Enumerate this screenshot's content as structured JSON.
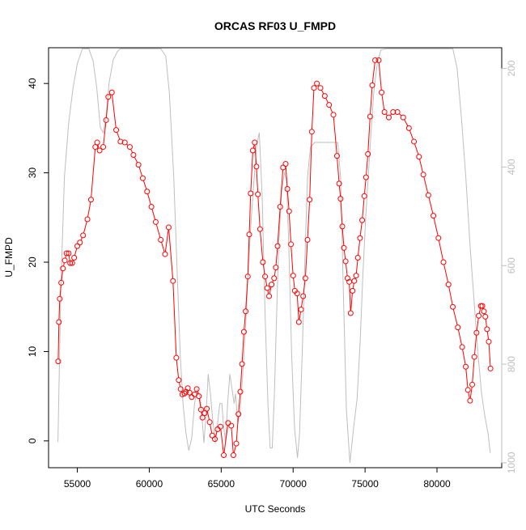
{
  "chart_data": {
    "type": "line",
    "title": "ORCAS RF03 U_FMPD",
    "xlabel": "UTC Seconds",
    "ylabel": "U_FMPD",
    "xlim": [
      53000,
      84500
    ],
    "ylim": [
      -3,
      44
    ],
    "x_ticks": [
      55000,
      60000,
      65000,
      70000,
      75000,
      80000
    ],
    "y_ticks": [
      0,
      10,
      20,
      30,
      40
    ],
    "y2lim": [
      1010,
      158
    ],
    "y2_ticks": [
      200,
      400,
      600,
      800,
      1000
    ],
    "grid": false,
    "series": [
      {
        "role": "primary",
        "color": "#ff0000",
        "marker": "open-circle",
        "points": [
          [
            53670,
            8.9
          ],
          [
            53720,
            13.3
          ],
          [
            53780,
            15.9
          ],
          [
            53880,
            17.7
          ],
          [
            54000,
            19.3
          ],
          [
            54130,
            20.2
          ],
          [
            54250,
            21.0
          ],
          [
            54400,
            21.0
          ],
          [
            54500,
            19.9
          ],
          [
            54640,
            19.9
          ],
          [
            54780,
            20.5
          ],
          [
            55000,
            21.8
          ],
          [
            55180,
            22.2
          ],
          [
            55400,
            23.0
          ],
          [
            55700,
            24.8
          ],
          [
            55950,
            27.0
          ],
          [
            56250,
            32.9
          ],
          [
            56380,
            33.4
          ],
          [
            56550,
            32.5
          ],
          [
            56800,
            32.9
          ],
          [
            57000,
            35.9
          ],
          [
            57150,
            38.5
          ],
          [
            57400,
            39.0
          ],
          [
            57700,
            34.8
          ],
          [
            58000,
            33.5
          ],
          [
            58300,
            33.4
          ],
          [
            58650,
            32.9
          ],
          [
            58900,
            32.0
          ],
          [
            59250,
            30.9
          ],
          [
            59550,
            29.4
          ],
          [
            59850,
            27.9
          ],
          [
            60150,
            26.2
          ],
          [
            60450,
            24.5
          ],
          [
            60800,
            22.5
          ],
          [
            61100,
            20.9
          ],
          [
            61350,
            23.9
          ],
          [
            61650,
            17.9
          ],
          [
            61880,
            9.3
          ],
          [
            62050,
            6.8
          ],
          [
            62180,
            5.8
          ],
          [
            62300,
            5.2
          ],
          [
            62450,
            5.3
          ],
          [
            62550,
            5.5
          ],
          [
            62680,
            5.9
          ],
          [
            62800,
            5.4
          ],
          [
            62950,
            4.9
          ],
          [
            63150,
            5.2
          ],
          [
            63300,
            5.8
          ],
          [
            63450,
            5.0
          ],
          [
            63600,
            3.5
          ],
          [
            63700,
            2.6
          ],
          [
            63850,
            3.1
          ],
          [
            64000,
            3.6
          ],
          [
            64200,
            2.1
          ],
          [
            64380,
            0.6
          ],
          [
            64560,
            0.2
          ],
          [
            64750,
            1.3
          ],
          [
            64950,
            1.6
          ],
          [
            65180,
            -1.6
          ],
          [
            65480,
            2.0
          ],
          [
            65700,
            1.7
          ],
          [
            65850,
            -1.6
          ],
          [
            66050,
            -0.3
          ],
          [
            66200,
            3.0
          ],
          [
            66330,
            5.5
          ],
          [
            66450,
            8.6
          ],
          [
            66580,
            12.2
          ],
          [
            66700,
            14.5
          ],
          [
            66850,
            18.4
          ],
          [
            66950,
            23.1
          ],
          [
            67050,
            27.7
          ],
          [
            67200,
            32.5
          ],
          [
            67330,
            33.4
          ],
          [
            67450,
            30.7
          ],
          [
            67550,
            27.6
          ],
          [
            67700,
            23.7
          ],
          [
            67900,
            20.0
          ],
          [
            68050,
            18.4
          ],
          [
            68200,
            17.1
          ],
          [
            68330,
            16.2
          ],
          [
            68500,
            17.5
          ],
          [
            68680,
            18.2
          ],
          [
            68800,
            19.4
          ],
          [
            68920,
            21.8
          ],
          [
            69100,
            26.2
          ],
          [
            69300,
            30.6
          ],
          [
            69480,
            31.0
          ],
          [
            69600,
            28.2
          ],
          [
            69720,
            25.7
          ],
          [
            69850,
            22.0
          ],
          [
            70000,
            18.5
          ],
          [
            70120,
            16.8
          ],
          [
            70280,
            16.5
          ],
          [
            70400,
            13.3
          ],
          [
            70550,
            14.7
          ],
          [
            70700,
            16.2
          ],
          [
            70850,
            18.2
          ],
          [
            71000,
            22.5
          ],
          [
            71150,
            27.0
          ],
          [
            71300,
            34.6
          ],
          [
            71450,
            39.5
          ],
          [
            71650,
            40.0
          ],
          [
            71900,
            39.5
          ],
          [
            72200,
            38.6
          ],
          [
            72500,
            37.6
          ],
          [
            72800,
            36.5
          ],
          [
            73050,
            31.9
          ],
          [
            73200,
            28.8
          ],
          [
            73300,
            27.1
          ],
          [
            73420,
            24.0
          ],
          [
            73530,
            21.6
          ],
          [
            73650,
            20.1
          ],
          [
            73780,
            18.2
          ],
          [
            73900,
            17.8
          ],
          [
            74000,
            14.3
          ],
          [
            74130,
            16.8
          ],
          [
            74250,
            17.9
          ],
          [
            74380,
            18.5
          ],
          [
            74500,
            20.5
          ],
          [
            74650,
            22.7
          ],
          [
            74800,
            24.7
          ],
          [
            74950,
            27.4
          ],
          [
            75070,
            29.5
          ],
          [
            75200,
            32.1
          ],
          [
            75350,
            36.3
          ],
          [
            75500,
            39.8
          ],
          [
            75700,
            42.6
          ],
          [
            75950,
            42.6
          ],
          [
            76150,
            39.0
          ],
          [
            76350,
            36.8
          ],
          [
            76650,
            36.2
          ],
          [
            76950,
            36.8
          ],
          [
            77250,
            36.8
          ],
          [
            77650,
            36.2
          ],
          [
            78050,
            35.0
          ],
          [
            78400,
            33.5
          ],
          [
            78750,
            31.8
          ],
          [
            79050,
            29.8
          ],
          [
            79400,
            27.5
          ],
          [
            79750,
            25.2
          ],
          [
            80100,
            22.7
          ],
          [
            80450,
            20.0
          ],
          [
            80800,
            17.5
          ],
          [
            81100,
            15.0
          ],
          [
            81450,
            12.7
          ],
          [
            81750,
            10.5
          ],
          [
            82000,
            8.3
          ],
          [
            82150,
            5.7
          ],
          [
            82300,
            4.5
          ],
          [
            82450,
            6.3
          ],
          [
            82600,
            9.4
          ],
          [
            82750,
            12.1
          ],
          [
            82900,
            14.0
          ],
          [
            83050,
            15.1
          ],
          [
            83150,
            15.1
          ],
          [
            83260,
            14.5
          ],
          [
            83360,
            13.9
          ],
          [
            83480,
            12.5
          ],
          [
            83600,
            11.1
          ],
          [
            83720,
            8.1
          ]
        ]
      },
      {
        "role": "secondary",
        "color": "#bebebe",
        "axis": "right",
        "points": [
          [
            53650,
            958
          ],
          [
            53850,
            650
          ],
          [
            54100,
            420
          ],
          [
            54400,
            310
          ],
          [
            54700,
            240
          ],
          [
            55000,
            190
          ],
          [
            55350,
            160
          ],
          [
            55800,
            160
          ],
          [
            56100,
            185
          ],
          [
            56350,
            240
          ],
          [
            56600,
            320
          ],
          [
            56800,
            330
          ],
          [
            57000,
            300
          ],
          [
            57200,
            230
          ],
          [
            57500,
            182
          ],
          [
            57800,
            165
          ],
          [
            58000,
            160
          ],
          [
            58500,
            160
          ],
          [
            59500,
            160
          ],
          [
            60200,
            160
          ],
          [
            60800,
            160
          ],
          [
            61150,
            175
          ],
          [
            61400,
            250
          ],
          [
            61700,
            420
          ],
          [
            61950,
            620
          ],
          [
            62150,
            780
          ],
          [
            62350,
            880
          ],
          [
            62550,
            940
          ],
          [
            62750,
            975
          ],
          [
            62950,
            950
          ],
          [
            63150,
            880
          ],
          [
            63350,
            850
          ],
          [
            63550,
            870
          ],
          [
            63700,
            920
          ],
          [
            63800,
            960
          ],
          [
            63950,
            900
          ],
          [
            64100,
            820
          ],
          [
            64250,
            860
          ],
          [
            64400,
            910
          ],
          [
            64600,
            960
          ],
          [
            64750,
            920
          ],
          [
            64900,
            880
          ],
          [
            65050,
            880
          ],
          [
            65150,
            920
          ],
          [
            65300,
            960
          ],
          [
            65450,
            880
          ],
          [
            65600,
            820
          ],
          [
            65750,
            850
          ],
          [
            65900,
            880
          ],
          [
            66000,
            860
          ],
          [
            66150,
            920
          ],
          [
            66300,
            900
          ],
          [
            66500,
            820
          ],
          [
            66700,
            720
          ],
          [
            66900,
            600
          ],
          [
            67050,
            520
          ],
          [
            67250,
            440
          ],
          [
            67450,
            360
          ],
          [
            67650,
            330
          ],
          [
            67850,
            460
          ],
          [
            68050,
            700
          ],
          [
            68250,
            880
          ],
          [
            68400,
            970
          ],
          [
            68550,
            970
          ],
          [
            68700,
            860
          ],
          [
            68850,
            700
          ],
          [
            69000,
            560
          ],
          [
            69200,
            450
          ],
          [
            69400,
            410
          ],
          [
            69550,
            430
          ],
          [
            69700,
            560
          ],
          [
            69900,
            780
          ],
          [
            70100,
            930
          ],
          [
            70300,
            990
          ],
          [
            70450,
            940
          ],
          [
            70650,
            760
          ],
          [
            70850,
            560
          ],
          [
            71000,
            420
          ],
          [
            71200,
            360
          ],
          [
            71500,
            350
          ],
          [
            72500,
            350
          ],
          [
            73100,
            350
          ],
          [
            73300,
            420
          ],
          [
            73500,
            660
          ],
          [
            73700,
            890
          ],
          [
            73950,
            1000
          ],
          [
            74200,
            930
          ],
          [
            74450,
            870
          ],
          [
            74650,
            760
          ],
          [
            74850,
            620
          ],
          [
            75050,
            500
          ],
          [
            75350,
            360
          ],
          [
            75600,
            250
          ],
          [
            75850,
            190
          ],
          [
            76100,
            162
          ],
          [
            76500,
            160
          ],
          [
            78500,
            160
          ],
          [
            80000,
            160
          ],
          [
            81100,
            160
          ],
          [
            81400,
            200
          ],
          [
            81700,
            300
          ],
          [
            82000,
            420
          ],
          [
            82300,
            560
          ],
          [
            82600,
            680
          ],
          [
            82850,
            780
          ],
          [
            83100,
            860
          ],
          [
            83350,
            910
          ],
          [
            83550,
            940
          ],
          [
            83700,
            980
          ]
        ]
      }
    ]
  }
}
